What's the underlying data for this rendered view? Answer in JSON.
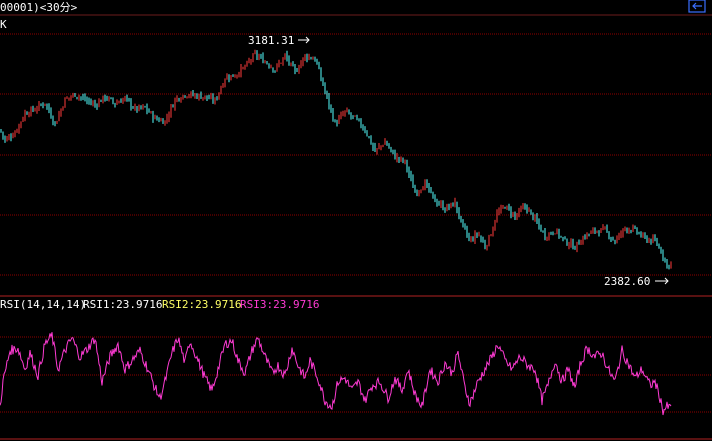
{
  "header": {
    "title": "00001)<30分>",
    "nav_icon": "arrow-left-box-icon",
    "panel_label": "K"
  },
  "rsi_legend": {
    "params": "RSI(14,14,14)",
    "rsi1": "RSI1:23.9716",
    "rsi2": "RSI2:23.9716",
    "rsi3": "RSI3:23.9716"
  },
  "colors": {
    "background": "#000000",
    "grid": "#8b0000",
    "up": "#ff3b3b",
    "down": "#54ffff",
    "rsi_line": "#ff3bd4",
    "text": "#ffffff",
    "rsi1": "#ffffff",
    "rsi2": "#ffff66",
    "rsi3": "#ff3bd4",
    "nav_icon": "#3a6fff"
  },
  "chart_data": [
    {
      "type": "candlestick",
      "title": "K",
      "y_range": [
        2270,
        3300
      ],
      "max_marker": {
        "label": "3181.31",
        "value": 3181.31
      },
      "min_marker": {
        "label": "2382.60",
        "value": 2382.6
      },
      "key_points": [
        [
          0,
          2880
        ],
        [
          5,
          2840
        ],
        [
          15,
          2870
        ],
        [
          25,
          2940
        ],
        [
          35,
          2955
        ],
        [
          45,
          2980
        ],
        [
          55,
          2900
        ],
        [
          65,
          2990
        ],
        [
          75,
          3010
        ],
        [
          85,
          2990
        ],
        [
          95,
          2970
        ],
        [
          105,
          3000
        ],
        [
          115,
          2975
        ],
        [
          125,
          2995
        ],
        [
          135,
          2955
        ],
        [
          145,
          2960
        ],
        [
          155,
          2920
        ],
        [
          165,
          2910
        ],
        [
          175,
          2990
        ],
        [
          185,
          3010
        ],
        [
          195,
          3005
        ],
        [
          205,
          3000
        ],
        [
          215,
          2985
        ],
        [
          225,
          3070
        ],
        [
          235,
          3080
        ],
        [
          245,
          3110
        ],
        [
          255,
          3155
        ],
        [
          265,
          3130
        ],
        [
          275,
          3100
        ],
        [
          285,
          3150
        ],
        [
          295,
          3090
        ],
        [
          305,
          3150
        ],
        [
          315,
          3140
        ],
        [
          325,
          3020
        ],
        [
          335,
          2900
        ],
        [
          345,
          2945
        ],
        [
          355,
          2920
        ],
        [
          365,
          2880
        ],
        [
          375,
          2800
        ],
        [
          385,
          2835
        ],
        [
          395,
          2780
        ],
        [
          405,
          2760
        ],
        [
          415,
          2650
        ],
        [
          425,
          2680
        ],
        [
          435,
          2620
        ],
        [
          445,
          2590
        ],
        [
          455,
          2610
        ],
        [
          462,
          2530
        ],
        [
          470,
          2470
        ],
        [
          478,
          2500
        ],
        [
          485,
          2450
        ],
        [
          490,
          2490
        ],
        [
          497,
          2570
        ],
        [
          505,
          2600
        ],
        [
          515,
          2560
        ],
        [
          525,
          2600
        ],
        [
          535,
          2550
        ],
        [
          545,
          2490
        ],
        [
          555,
          2510
        ],
        [
          565,
          2470
        ],
        [
          575,
          2450
        ],
        [
          585,
          2490
        ],
        [
          595,
          2510
        ],
        [
          605,
          2510
        ],
        [
          615,
          2470
        ],
        [
          625,
          2520
        ],
        [
          635,
          2510
        ],
        [
          645,
          2480
        ],
        [
          655,
          2470
        ],
        [
          662,
          2430
        ],
        [
          667,
          2380
        ],
        [
          672,
          2395
        ]
      ]
    },
    {
      "type": "line",
      "title": "RSI(14,14,14)",
      "series_name": "RSI",
      "y_range": [
        0,
        100
      ],
      "last_value": 23.9716,
      "key_points": [
        [
          0,
          25
        ],
        [
          3,
          45
        ],
        [
          10,
          70
        ],
        [
          18,
          72
        ],
        [
          25,
          55
        ],
        [
          30,
          68
        ],
        [
          38,
          50
        ],
        [
          45,
          75
        ],
        [
          52,
          82
        ],
        [
          58,
          55
        ],
        [
          65,
          70
        ],
        [
          72,
          80
        ],
        [
          80,
          65
        ],
        [
          88,
          72
        ],
        [
          95,
          80
        ],
        [
          102,
          45
        ],
        [
          110,
          65
        ],
        [
          118,
          75
        ],
        [
          125,
          55
        ],
        [
          132,
          62
        ],
        [
          140,
          70
        ],
        [
          148,
          55
        ],
        [
          155,
          40
        ],
        [
          160,
          32
        ],
        [
          165,
          45
        ],
        [
          172,
          68
        ],
        [
          178,
          80
        ],
        [
          185,
          60
        ],
        [
          190,
          78
        ],
        [
          198,
          62
        ],
        [
          205,
          48
        ],
        [
          212,
          38
        ],
        [
          218,
          55
        ],
        [
          225,
          75
        ],
        [
          232,
          78
        ],
        [
          238,
          62
        ],
        [
          245,
          52
        ],
        [
          252,
          70
        ],
        [
          258,
          80
        ],
        [
          265,
          65
        ],
        [
          272,
          52
        ],
        [
          278,
          58
        ],
        [
          285,
          50
        ],
        [
          292,
          72
        ],
        [
          298,
          58
        ],
        [
          305,
          48
        ],
        [
          310,
          62
        ],
        [
          318,
          48
        ],
        [
          325,
          30
        ],
        [
          332,
          25
        ],
        [
          338,
          45
        ],
        [
          345,
          48
        ],
        [
          352,
          38
        ],
        [
          358,
          45
        ],
        [
          365,
          30
        ],
        [
          372,
          42
        ],
        [
          380,
          45
        ],
        [
          388,
          32
        ],
        [
          395,
          48
        ],
        [
          402,
          38
        ],
        [
          408,
          55
        ],
        [
          415,
          35
        ],
        [
          422,
          25
        ],
        [
          430,
          55
        ],
        [
          438,
          45
        ],
        [
          445,
          60
        ],
        [
          452,
          52
        ],
        [
          458,
          68
        ],
        [
          465,
          40
        ],
        [
          470,
          28
        ],
        [
          478,
          45
        ],
        [
          485,
          55
        ],
        [
          492,
          65
        ],
        [
          498,
          75
        ],
        [
          505,
          62
        ],
        [
          512,
          55
        ],
        [
          520,
          65
        ],
        [
          528,
          58
        ],
        [
          535,
          55
        ],
        [
          542,
          30
        ],
        [
          548,
          42
        ],
        [
          555,
          62
        ],
        [
          562,
          45
        ],
        [
          568,
          55
        ],
        [
          575,
          40
        ],
        [
          580,
          58
        ],
        [
          587,
          72
        ],
        [
          595,
          65
        ],
        [
          602,
          68
        ],
        [
          608,
          55
        ],
        [
          615,
          45
        ],
        [
          622,
          70
        ],
        [
          628,
          60
        ],
        [
          635,
          48
        ],
        [
          642,
          55
        ],
        [
          650,
          42
        ],
        [
          655,
          45
        ],
        [
          660,
          32
        ],
        [
          663,
          22
        ],
        [
          667,
          25
        ],
        [
          671,
          24
        ]
      ]
    }
  ]
}
